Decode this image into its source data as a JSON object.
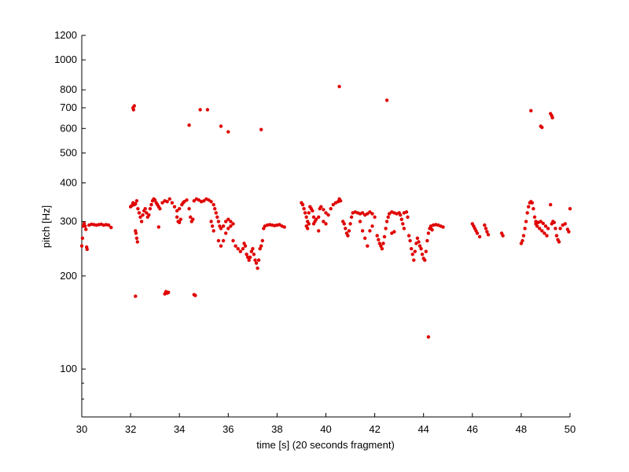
{
  "chart_data": {
    "type": "scatter",
    "xlabel": "time [s] (20 seconds fragment)",
    "ylabel": "pitch [Hz]",
    "xlim": [
      30,
      50
    ],
    "ylim": [
      70,
      1200
    ],
    "yscale": "log",
    "xticks": [
      30,
      32,
      34,
      36,
      38,
      40,
      42,
      44,
      46,
      48,
      50
    ],
    "xtick_labels": [
      "30",
      "32",
      "34",
      "36",
      "38",
      "40",
      "42",
      "44",
      "46",
      "48",
      "50"
    ],
    "yticks": [
      100,
      200,
      300,
      400,
      500,
      600,
      700,
      800,
      1000,
      1200
    ],
    "ytick_labels": [
      "100",
      "200",
      "300",
      "400",
      "500",
      "600",
      "700",
      "800",
      "1000",
      "1200"
    ],
    "grid": false,
    "marker_color": "#e00000",
    "series": [
      {
        "points": [
          [
            30.0,
            250
          ],
          [
            30.03,
            265
          ],
          [
            30.06,
            290
          ],
          [
            30.1,
            296
          ],
          [
            30.14,
            290
          ],
          [
            30.17,
            283
          ],
          [
            30.2,
            248
          ],
          [
            30.22,
            244
          ],
          [
            30.3,
            292
          ],
          [
            30.4,
            294
          ],
          [
            30.5,
            293
          ],
          [
            30.6,
            292
          ],
          [
            30.7,
            293
          ],
          [
            30.8,
            294
          ],
          [
            30.9,
            292
          ],
          [
            31.0,
            293
          ],
          [
            31.1,
            292
          ],
          [
            31.2,
            287
          ],
          [
            32.0,
            335
          ],
          [
            32.05,
            338
          ],
          [
            32.1,
            345
          ],
          [
            32.15,
            340
          ],
          [
            32.2,
            342
          ],
          [
            32.25,
            350
          ],
          [
            32.3,
            330
          ],
          [
            32.35,
            320
          ],
          [
            32.4,
            310
          ],
          [
            32.45,
            300
          ],
          [
            32.5,
            315
          ],
          [
            32.55,
            325
          ],
          [
            32.6,
            330
          ],
          [
            32.65,
            320
          ],
          [
            32.7,
            310
          ],
          [
            32.75,
            315
          ],
          [
            32.8,
            330
          ],
          [
            32.85,
            340
          ],
          [
            32.9,
            350
          ],
          [
            32.95,
            355
          ],
          [
            33.0,
            352
          ],
          [
            33.05,
            345
          ],
          [
            33.1,
            340
          ],
          [
            33.15,
            335
          ],
          [
            33.2,
            330
          ],
          [
            33.3,
            345
          ],
          [
            33.4,
            350
          ],
          [
            33.5,
            348
          ],
          [
            33.6,
            355
          ],
          [
            33.7,
            345
          ],
          [
            33.8,
            335
          ],
          [
            33.9,
            325
          ],
          [
            34.0,
            330
          ],
          [
            34.1,
            340
          ],
          [
            34.15,
            345
          ],
          [
            32.2,
            280
          ],
          [
            32.22,
            275
          ],
          [
            32.25,
            265
          ],
          [
            32.28,
            258
          ],
          [
            33.15,
            288
          ],
          [
            33.9,
            310
          ],
          [
            33.95,
            300
          ],
          [
            34.0,
            298
          ],
          [
            34.05,
            305
          ],
          [
            34.2,
            348
          ],
          [
            34.3,
            352
          ],
          [
            34.4,
            330
          ],
          [
            34.45,
            310
          ],
          [
            34.5,
            300
          ],
          [
            34.55,
            305
          ],
          [
            34.6,
            350
          ],
          [
            34.7,
            355
          ],
          [
            34.8,
            352
          ],
          [
            34.9,
            348
          ],
          [
            35.0,
            350
          ],
          [
            35.1,
            355
          ],
          [
            35.2,
            352
          ],
          [
            35.3,
            348
          ],
          [
            35.4,
            340
          ],
          [
            35.45,
            330
          ],
          [
            35.5,
            320
          ],
          [
            35.55,
            310
          ],
          [
            35.6,
            300
          ],
          [
            35.65,
            290
          ],
          [
            35.7,
            285
          ],
          [
            35.8,
            290
          ],
          [
            35.9,
            300
          ],
          [
            36.0,
            305
          ],
          [
            36.1,
            300
          ],
          [
            36.2,
            295
          ],
          [
            35.3,
            300
          ],
          [
            35.35,
            290
          ],
          [
            35.4,
            280
          ],
          [
            35.6,
            260
          ],
          [
            35.7,
            250
          ],
          [
            35.8,
            260
          ],
          [
            35.9,
            275
          ],
          [
            36.0,
            285
          ],
          [
            36.1,
            290
          ],
          [
            36.2,
            260
          ],
          [
            36.3,
            250
          ],
          [
            36.4,
            245
          ],
          [
            36.5,
            240
          ],
          [
            36.6,
            245
          ],
          [
            36.65,
            255
          ],
          [
            36.7,
            250
          ],
          [
            36.75,
            235
          ],
          [
            36.8,
            230
          ],
          [
            36.85,
            225
          ],
          [
            36.9,
            230
          ],
          [
            36.95,
            240
          ],
          [
            37.0,
            245
          ],
          [
            37.05,
            235
          ],
          [
            37.1,
            225
          ],
          [
            37.15,
            220
          ],
          [
            37.2,
            212
          ],
          [
            37.25,
            225
          ],
          [
            37.3,
            245
          ],
          [
            37.35,
            250
          ],
          [
            37.4,
            260
          ],
          [
            37.45,
            285
          ],
          [
            37.5,
            290
          ],
          [
            37.6,
            292
          ],
          [
            37.7,
            293
          ],
          [
            37.8,
            292
          ],
          [
            37.9,
            291
          ],
          [
            38.0,
            292
          ],
          [
            38.1,
            293
          ],
          [
            38.2,
            290
          ],
          [
            38.3,
            288
          ],
          [
            39.0,
            345
          ],
          [
            39.05,
            340
          ],
          [
            39.1,
            330
          ],
          [
            39.15,
            320
          ],
          [
            39.2,
            310
          ],
          [
            39.25,
            300
          ],
          [
            39.3,
            320
          ],
          [
            39.35,
            335
          ],
          [
            39.4,
            330
          ],
          [
            39.45,
            325
          ],
          [
            39.5,
            310
          ],
          [
            39.55,
            300
          ],
          [
            39.6,
            305
          ],
          [
            39.7,
            310
          ],
          [
            39.75,
            330
          ],
          [
            39.8,
            335
          ],
          [
            39.9,
            328
          ],
          [
            40.0,
            320
          ],
          [
            40.1,
            315
          ],
          [
            40.2,
            330
          ],
          [
            40.3,
            340
          ],
          [
            40.4,
            345
          ],
          [
            40.5,
            348
          ],
          [
            40.55,
            355
          ],
          [
            40.6,
            350
          ],
          [
            39.2,
            290
          ],
          [
            39.25,
            285
          ],
          [
            39.3,
            295
          ],
          [
            39.5,
            295
          ],
          [
            39.7,
            280
          ],
          [
            39.9,
            300
          ],
          [
            40.0,
            295
          ],
          [
            40.7,
            300
          ],
          [
            40.75,
            295
          ],
          [
            40.8,
            285
          ],
          [
            40.85,
            275
          ],
          [
            40.9,
            270
          ],
          [
            40.95,
            280
          ],
          [
            41.0,
            295
          ],
          [
            41.05,
            310
          ],
          [
            41.1,
            320
          ],
          [
            41.2,
            322
          ],
          [
            41.3,
            320
          ],
          [
            41.4,
            318
          ],
          [
            41.5,
            320
          ],
          [
            41.6,
            315
          ],
          [
            41.7,
            318
          ],
          [
            41.8,
            322
          ],
          [
            41.9,
            318
          ],
          [
            42.0,
            310
          ],
          [
            41.4,
            300
          ],
          [
            41.5,
            280
          ],
          [
            41.6,
            265
          ],
          [
            41.7,
            250
          ],
          [
            41.8,
            280
          ],
          [
            41.9,
            290
          ],
          [
            42.1,
            270
          ],
          [
            42.15,
            262
          ],
          [
            42.2,
            255
          ],
          [
            42.25,
            250
          ],
          [
            42.3,
            245
          ],
          [
            42.35,
            255
          ],
          [
            42.4,
            268
          ],
          [
            42.45,
            285
          ],
          [
            42.5,
            300
          ],
          [
            42.55,
            310
          ],
          [
            42.6,
            318
          ],
          [
            42.7,
            322
          ],
          [
            42.8,
            320
          ],
          [
            42.9,
            318
          ],
          [
            43.0,
            320
          ],
          [
            43.05,
            315
          ],
          [
            43.1,
            305
          ],
          [
            43.15,
            295
          ],
          [
            43.2,
            285
          ],
          [
            42.7,
            275
          ],
          [
            42.8,
            278
          ],
          [
            43.2,
            320
          ],
          [
            43.3,
            322
          ],
          [
            43.35,
            310
          ],
          [
            43.4,
            270
          ],
          [
            43.45,
            260
          ],
          [
            43.5,
            245
          ],
          [
            43.55,
            235
          ],
          [
            43.6,
            225
          ],
          [
            43.65,
            240
          ],
          [
            43.7,
            255
          ],
          [
            43.75,
            265
          ],
          [
            43.8,
            258
          ],
          [
            43.85,
            250
          ],
          [
            43.9,
            245
          ],
          [
            43.95,
            235
          ],
          [
            44.0,
            228
          ],
          [
            44.05,
            225
          ],
          [
            44.1,
            240
          ],
          [
            44.15,
            260
          ],
          [
            44.2,
            275
          ],
          [
            44.25,
            285
          ],
          [
            44.3,
            290
          ],
          [
            44.4,
            292
          ],
          [
            44.5,
            293
          ],
          [
            44.6,
            292
          ],
          [
            44.7,
            290
          ],
          [
            44.8,
            288
          ],
          [
            44.3,
            285
          ],
          [
            44.35,
            282
          ],
          [
            46.0,
            295
          ],
          [
            46.05,
            290
          ],
          [
            46.1,
            285
          ],
          [
            46.15,
            280
          ],
          [
            46.2,
            275
          ],
          [
            46.3,
            268
          ],
          [
            46.5,
            292
          ],
          [
            46.55,
            285
          ],
          [
            46.6,
            278
          ],
          [
            46.65,
            272
          ],
          [
            47.2,
            275
          ],
          [
            47.25,
            270
          ],
          [
            48.0,
            255
          ],
          [
            48.05,
            260
          ],
          [
            48.1,
            270
          ],
          [
            48.15,
            285
          ],
          [
            48.2,
            300
          ],
          [
            48.25,
            320
          ],
          [
            48.3,
            335
          ],
          [
            48.35,
            345
          ],
          [
            48.4,
            348
          ],
          [
            48.45,
            345
          ],
          [
            48.5,
            330
          ],
          [
            48.55,
            310
          ],
          [
            48.6,
            300
          ],
          [
            48.7,
            298
          ],
          [
            48.8,
            300
          ],
          [
            48.9,
            296
          ],
          [
            49.0,
            290
          ],
          [
            49.1,
            285
          ],
          [
            48.6,
            295
          ],
          [
            48.65,
            290
          ],
          [
            48.75,
            285
          ],
          [
            48.85,
            280
          ],
          [
            48.95,
            275
          ],
          [
            49.05,
            270
          ],
          [
            49.2,
            340
          ],
          [
            49.25,
            295
          ],
          [
            49.3,
            300
          ],
          [
            49.35,
            298
          ],
          [
            49.4,
            285
          ],
          [
            49.45,
            270
          ],
          [
            49.5,
            262
          ],
          [
            49.55,
            258
          ],
          [
            49.6,
            285
          ],
          [
            49.7,
            292
          ],
          [
            49.8,
            295
          ],
          [
            49.9,
            283
          ],
          [
            49.95,
            278
          ],
          [
            50.0,
            330
          ],
          [
            32.1,
            700
          ],
          [
            32.15,
            710
          ],
          [
            32.12,
            690
          ],
          [
            32.2,
            172
          ],
          [
            33.4,
            175
          ],
          [
            33.45,
            178
          ],
          [
            33.5,
            176
          ],
          [
            33.55,
            177
          ],
          [
            34.6,
            174
          ],
          [
            34.65,
            173
          ],
          [
            34.4,
            615
          ],
          [
            34.85,
            690
          ],
          [
            35.15,
            690
          ],
          [
            35.7,
            610
          ],
          [
            36.0,
            585
          ],
          [
            37.35,
            595
          ],
          [
            40.55,
            820
          ],
          [
            42.5,
            740
          ],
          [
            44.2,
            127
          ],
          [
            48.4,
            685
          ],
          [
            48.8,
            610
          ],
          [
            48.85,
            605
          ],
          [
            49.2,
            670
          ],
          [
            49.25,
            660
          ],
          [
            49.28,
            650
          ]
        ]
      }
    ]
  }
}
